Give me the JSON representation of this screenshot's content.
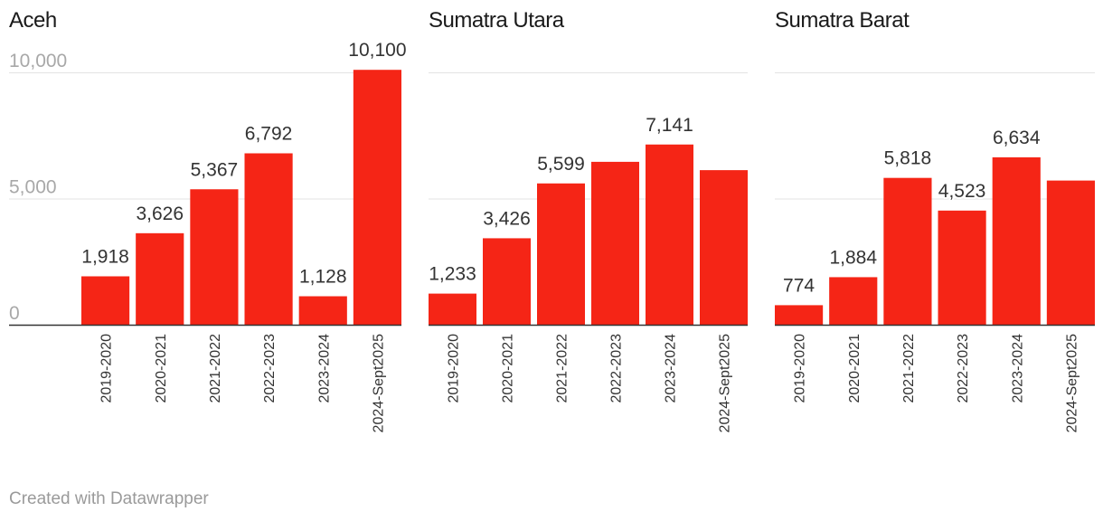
{
  "footer": "Created with Datawrapper",
  "chart_data": [
    {
      "type": "bar",
      "title": "Aceh",
      "categories": [
        "2019-2020",
        "2020-2021",
        "2021-2022",
        "2022-2023",
        "2023-2024",
        "2024-Sept2025"
      ],
      "values": [
        1918,
        3626,
        5367,
        6792,
        1128,
        10100
      ],
      "value_labels": [
        "1,918",
        "3,626",
        "5,367",
        "6,792",
        "1,128",
        "10,100"
      ],
      "yticks": [
        0,
        5000,
        10000
      ],
      "ytick_labels": [
        "0",
        "5,000",
        "10,000"
      ],
      "ylim": [
        0,
        10000
      ],
      "color": "#f52516"
    },
    {
      "type": "bar",
      "title": "Sumatra Utara",
      "categories": [
        "2019-2020",
        "2020-2021",
        "2021-2022",
        "2022-2023",
        "2023-2024",
        "2024-Sept2025"
      ],
      "values": [
        1233,
        3426,
        5599,
        6455,
        7141,
        6125
      ],
      "value_labels": [
        "1,233",
        "3,426",
        "5,599",
        "",
        "7,141",
        ""
      ],
      "yticks": [
        0,
        5000,
        10000
      ],
      "ylim": [
        0,
        10000
      ],
      "color": "#f52516"
    },
    {
      "type": "bar",
      "title": "Sumatra Barat",
      "categories": [
        "2019-2020",
        "2020-2021",
        "2021-2022",
        "2022-2023",
        "2023-2024",
        "2024-Sept2025"
      ],
      "values": [
        774,
        1884,
        5818,
        4523,
        6634,
        5713
      ],
      "value_labels": [
        "774",
        "1,884",
        "5,818",
        "4,523",
        "6,634",
        ""
      ],
      "yticks": [
        0,
        5000,
        10000
      ],
      "ylim": [
        0,
        10000
      ],
      "color": "#f52516"
    }
  ]
}
